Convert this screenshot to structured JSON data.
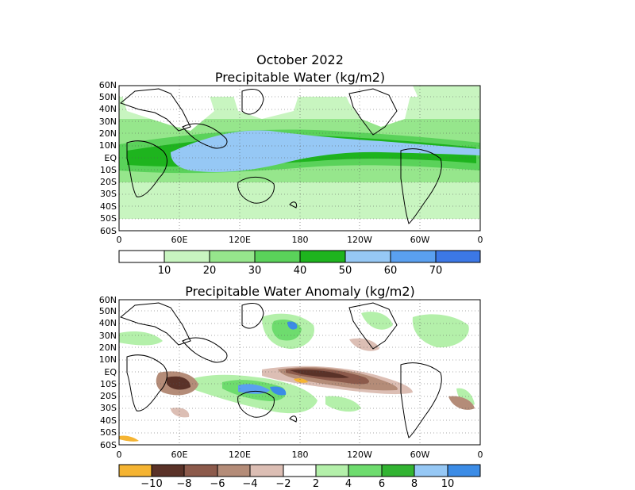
{
  "panel_top": {
    "title_line1": "October 2022",
    "title_line2": "Precipitable Water (kg/m2)",
    "lat_labels": [
      "60N",
      "50N",
      "40N",
      "30N",
      "20N",
      "10N",
      "EQ",
      "10S",
      "20S",
      "30S",
      "40S",
      "50S",
      "60S"
    ],
    "lon_labels": [
      "0",
      "60E",
      "120E",
      "180",
      "120W",
      "60W",
      "0"
    ],
    "colorbar": {
      "colors": [
        "#ffffff",
        "#c8f5c0",
        "#96e68c",
        "#5ad25a",
        "#1eb41e",
        "#96c8f5",
        "#5aa0f0",
        "#3c78e6"
      ],
      "labels": [
        "10",
        "20",
        "30",
        "40",
        "50",
        "60",
        "70"
      ]
    }
  },
  "panel_bottom": {
    "title": "Precipitable Water Anomaly (kg/m2)",
    "lat_labels": [
      "60N",
      "50N",
      "40N",
      "30N",
      "20N",
      "10N",
      "EQ",
      "10S",
      "20S",
      "30S",
      "40S",
      "50S",
      "60S"
    ],
    "lon_labels": [
      "0",
      "60E",
      "120E",
      "180",
      "120W",
      "60W",
      "0"
    ],
    "colorbar": {
      "colors": [
        "#f5b432",
        "#5a3228",
        "#8c5a4b",
        "#b48c78",
        "#dcbeb4",
        "#ffffff",
        "#b4f0aa",
        "#6edc6e",
        "#32b432",
        "#96c8f5",
        "#3c8ce6"
      ],
      "labels": [
        "−10",
        "−8",
        "−6",
        "−4",
        "−2",
        "2",
        "4",
        "6",
        "8",
        "10"
      ]
    }
  }
}
